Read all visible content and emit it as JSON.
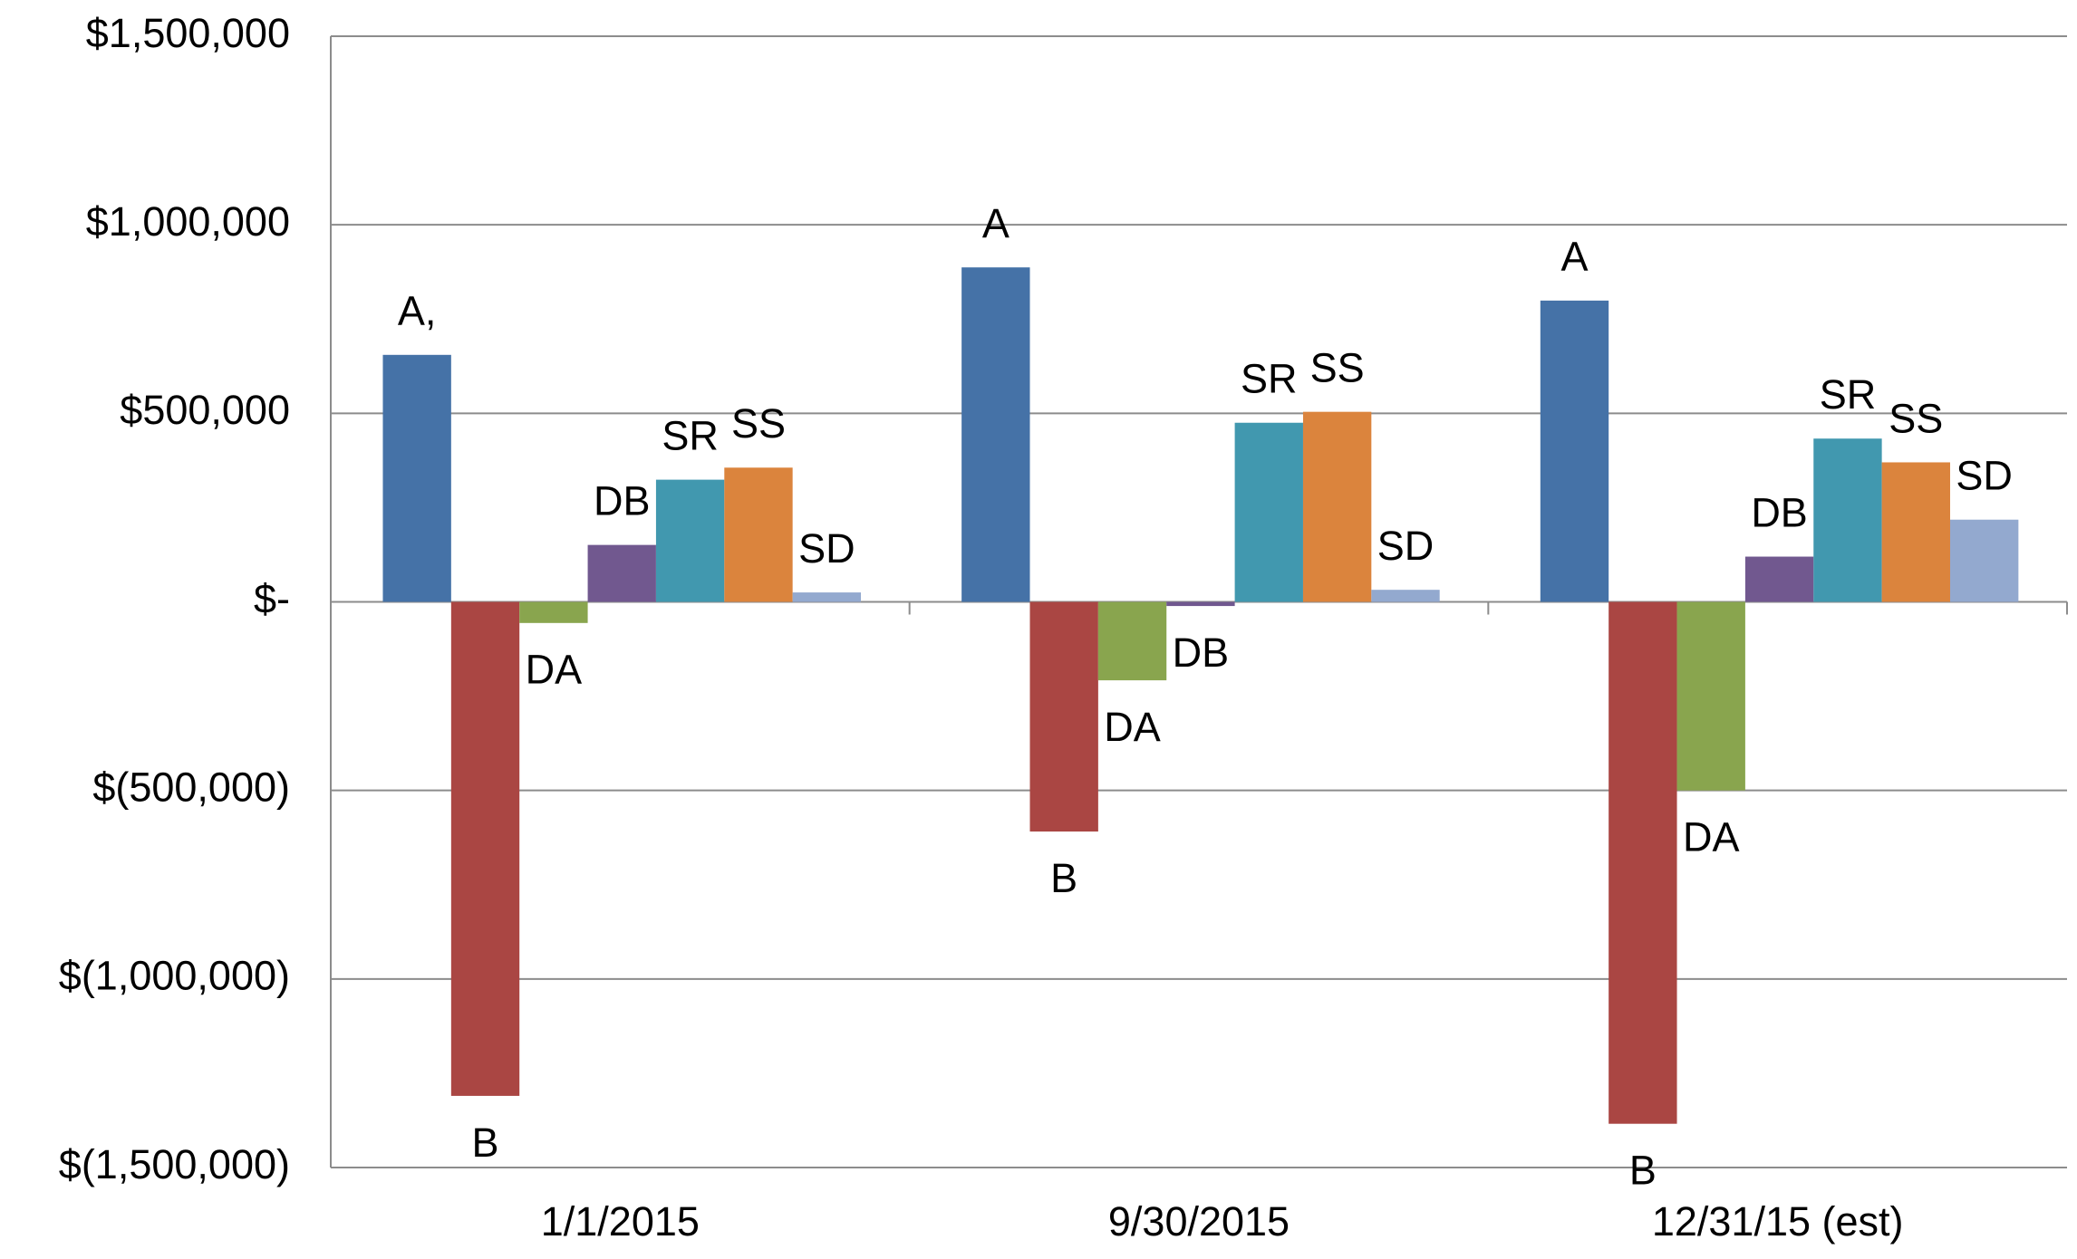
{
  "chart_data": {
    "type": "bar",
    "categories": [
      "1/1/2015",
      "9/30/2015",
      "12/31/15 (est)"
    ],
    "series": [
      {
        "name": "A",
        "color": "#4572a7",
        "values": [
          655000,
          887000,
          799000
        ],
        "data_labels": [
          "A,",
          "A",
          "A"
        ]
      },
      {
        "name": "B",
        "color": "#aa4643",
        "values": [
          -1310000,
          -609000,
          -1384000
        ],
        "data_labels": [
          "B",
          "B",
          "B"
        ]
      },
      {
        "name": "DA",
        "color": "#89a54e",
        "values": [
          -56000,
          -208000,
          -500000
        ],
        "data_labels": [
          "DA",
          "DA",
          "DA"
        ]
      },
      {
        "name": "DB",
        "color": "#71588f",
        "values": [
          151000,
          -11000,
          120000
        ],
        "data_labels": [
          "DB",
          "DB",
          "DB"
        ]
      },
      {
        "name": "SR",
        "color": "#4198af",
        "values": [
          324000,
          475000,
          433000
        ],
        "data_labels": [
          "SR",
          "SR",
          "SR"
        ]
      },
      {
        "name": "SS",
        "color": "#db843d",
        "values": [
          356000,
          504000,
          370000
        ],
        "data_labels": [
          "SS",
          "SS",
          "SS"
        ]
      },
      {
        "name": "SD",
        "color": "#93a9cf",
        "values": [
          25000,
          32000,
          218000
        ],
        "data_labels": [
          "SD",
          "SD",
          "SD"
        ]
      }
    ],
    "ylim": [
      -1500000,
      1500000
    ],
    "yticks": [
      {
        "value": -1500000,
        "label": "$(1,500,000)"
      },
      {
        "value": -1000000,
        "label": "$(1,000,000)"
      },
      {
        "value": -500000,
        "label": "$(500,000)"
      },
      {
        "value": 0,
        "label": "$-"
      },
      {
        "value": 500000,
        "label": "$500,000"
      },
      {
        "value": 1000000,
        "label": "$1,000,000"
      },
      {
        "value": 1500000,
        "label": "$1,500,000"
      }
    ],
    "grid": true
  }
}
